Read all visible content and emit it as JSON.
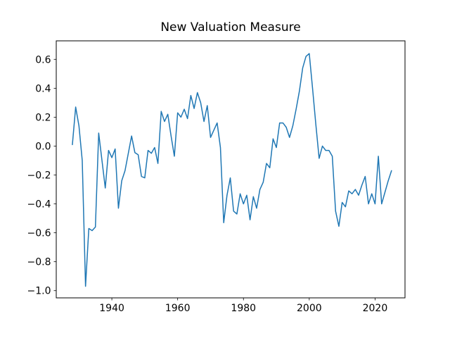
{
  "chart_data": {
    "type": "line",
    "title": "New Valuation Measure",
    "xlabel": "",
    "ylabel": "",
    "grid": false,
    "legend": null,
    "background_color": "#ffffff",
    "axes_edge_color": "#000000",
    "tick_text_color": "#000000",
    "series": [
      {
        "name": "New Valuation Measure",
        "color": "#1f77b4",
        "x": [
          1928,
          1929,
          1930,
          1931,
          1932,
          1933,
          1934,
          1935,
          1936,
          1937,
          1938,
          1939,
          1940,
          1941,
          1942,
          1943,
          1944,
          1945,
          1946,
          1947,
          1948,
          1949,
          1950,
          1951,
          1952,
          1953,
          1954,
          1955,
          1956,
          1957,
          1958,
          1959,
          1960,
          1961,
          1962,
          1963,
          1964,
          1965,
          1966,
          1967,
          1968,
          1969,
          1970,
          1971,
          1972,
          1973,
          1974,
          1975,
          1976,
          1977,
          1978,
          1979,
          1980,
          1981,
          1982,
          1983,
          1984,
          1985,
          1986,
          1987,
          1988,
          1989,
          1990,
          1991,
          1992,
          1993,
          1994,
          1995,
          1996,
          1997,
          1998,
          1999,
          2000,
          2001,
          2002,
          2003,
          2004,
          2005,
          2006,
          2007,
          2008,
          2009,
          2010,
          2011,
          2012,
          2013,
          2014,
          2015,
          2016,
          2017,
          2018,
          2019,
          2020,
          2021,
          2022,
          2023,
          2024,
          2025
        ],
        "values": [
          0.01,
          0.27,
          0.14,
          -0.1,
          -0.97,
          -0.57,
          -0.585,
          -0.56,
          0.09,
          -0.1,
          -0.29,
          -0.03,
          -0.08,
          -0.02,
          -0.43,
          -0.24,
          -0.17,
          -0.05,
          0.07,
          -0.045,
          -0.06,
          -0.21,
          -0.22,
          -0.03,
          -0.05,
          -0.01,
          -0.12,
          0.24,
          0.17,
          0.22,
          0.07,
          -0.07,
          0.23,
          0.2,
          0.255,
          0.19,
          0.35,
          0.26,
          0.37,
          0.3,
          0.17,
          0.28,
          0.06,
          0.11,
          0.16,
          -0.01,
          -0.53,
          -0.34,
          -0.22,
          -0.45,
          -0.47,
          -0.33,
          -0.4,
          -0.34,
          -0.51,
          -0.35,
          -0.43,
          -0.3,
          -0.25,
          -0.12,
          -0.15,
          0.05,
          -0.01,
          0.16,
          0.16,
          0.13,
          0.06,
          0.14,
          0.255,
          0.38,
          0.54,
          0.62,
          0.64,
          0.4,
          0.15,
          -0.085,
          0.0,
          -0.03,
          -0.03,
          -0.07,
          -0.45,
          -0.555,
          -0.39,
          -0.42,
          -0.31,
          -0.33,
          -0.3,
          -0.34,
          -0.27,
          -0.21,
          -0.4,
          -0.33,
          -0.4,
          -0.07,
          -0.4,
          -0.32,
          -0.24,
          -0.17
        ]
      }
    ],
    "xticks": {
      "values": [
        1940,
        1960,
        1980,
        2000,
        2020
      ],
      "labels": [
        "1940",
        "1960",
        "1980",
        "2000",
        "2020"
      ]
    },
    "yticks": {
      "values": [
        0.6,
        0.4,
        0.2,
        0.0,
        -0.2,
        -0.4,
        -0.6,
        -0.8,
        -1.0
      ],
      "labels": [
        "0.6",
        "0.4",
        "0.2",
        "0.0",
        "−0.2",
        "−0.4",
        "−0.6",
        "−0.8",
        "−1.0"
      ]
    },
    "xlim": [
      1923.1,
      2029.1
    ],
    "ylim": [
      -1.05,
      0.728
    ]
  }
}
